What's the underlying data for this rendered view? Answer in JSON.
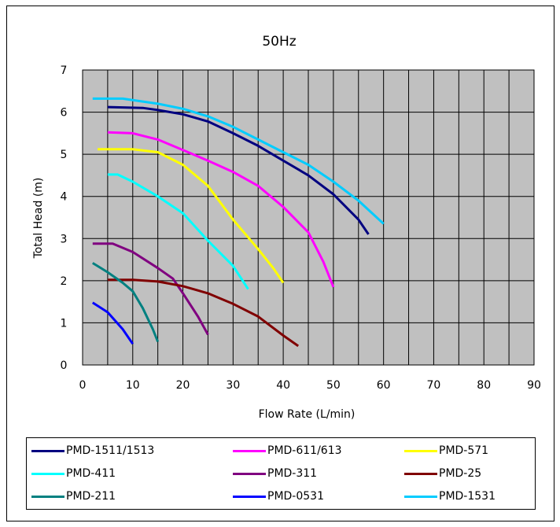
{
  "chart_data": {
    "type": "line",
    "title": "50Hz",
    "xlabel": "Flow Rate (L/min)",
    "ylabel": "Total Head (m)",
    "xlim": [
      0,
      90
    ],
    "ylim": [
      0,
      7
    ],
    "xticks": [
      0,
      10,
      20,
      30,
      40,
      50,
      60,
      70,
      80,
      90
    ],
    "yticks": [
      0,
      1,
      2,
      3,
      4,
      5,
      6,
      7
    ],
    "x_minor_step": 5,
    "grid": true,
    "plot_background": "#c0c0c0",
    "legend_position": "bottom",
    "series": [
      {
        "name": "PMD-1511/1513",
        "color": "#000080",
        "points": [
          [
            5,
            6.12
          ],
          [
            12,
            6.1
          ],
          [
            15,
            6.05
          ],
          [
            20,
            5.95
          ],
          [
            25,
            5.78
          ],
          [
            30,
            5.5
          ],
          [
            35,
            5.2
          ],
          [
            40,
            4.85
          ],
          [
            45,
            4.5
          ],
          [
            50,
            4.05
          ],
          [
            55,
            3.45
          ],
          [
            57,
            3.1
          ]
        ]
      },
      {
        "name": "PMD-611/613",
        "color": "#ff00ff",
        "points": [
          [
            5,
            5.52
          ],
          [
            10,
            5.5
          ],
          [
            15,
            5.35
          ],
          [
            20,
            5.1
          ],
          [
            25,
            4.85
          ],
          [
            30,
            4.58
          ],
          [
            35,
            4.25
          ],
          [
            40,
            3.75
          ],
          [
            45,
            3.15
          ],
          [
            48,
            2.45
          ],
          [
            50,
            1.85
          ]
        ]
      },
      {
        "name": "PMD-571",
        "color": "#ffff00",
        "points": [
          [
            3,
            5.12
          ],
          [
            10,
            5.12
          ],
          [
            15,
            5.05
          ],
          [
            20,
            4.75
          ],
          [
            25,
            4.25
          ],
          [
            30,
            3.45
          ],
          [
            35,
            2.75
          ],
          [
            38,
            2.3
          ],
          [
            40,
            1.95
          ]
        ]
      },
      {
        "name": "PMD-411",
        "color": "#00ffff",
        "points": [
          [
            5,
            4.52
          ],
          [
            7,
            4.52
          ],
          [
            10,
            4.35
          ],
          [
            15,
            4.0
          ],
          [
            20,
            3.6
          ],
          [
            25,
            2.95
          ],
          [
            30,
            2.35
          ],
          [
            33,
            1.8
          ]
        ]
      },
      {
        "name": "PMD-311",
        "color": "#800080",
        "points": [
          [
            2,
            2.88
          ],
          [
            6,
            2.88
          ],
          [
            10,
            2.68
          ],
          [
            15,
            2.3
          ],
          [
            18,
            2.05
          ],
          [
            20,
            1.7
          ],
          [
            23,
            1.15
          ],
          [
            25,
            0.72
          ]
        ]
      },
      {
        "name": "PMD-25",
        "color": "#800000",
        "points": [
          [
            5,
            2.02
          ],
          [
            10,
            2.02
          ],
          [
            15,
            1.98
          ],
          [
            20,
            1.87
          ],
          [
            25,
            1.7
          ],
          [
            30,
            1.45
          ],
          [
            35,
            1.15
          ],
          [
            40,
            0.7
          ],
          [
            43,
            0.45
          ]
        ]
      },
      {
        "name": "PMD-211",
        "color": "#008080",
        "points": [
          [
            2,
            2.42
          ],
          [
            5,
            2.2
          ],
          [
            8,
            1.95
          ],
          [
            10,
            1.75
          ],
          [
            12,
            1.35
          ],
          [
            14,
            0.85
          ],
          [
            15,
            0.55
          ]
        ]
      },
      {
        "name": "PMD-0531",
        "color": "#0000ff",
        "points": [
          [
            2,
            1.48
          ],
          [
            5,
            1.25
          ],
          [
            8,
            0.85
          ],
          [
            10,
            0.5
          ]
        ]
      },
      {
        "name": "PMD-1531",
        "color": "#00ccff",
        "points": [
          [
            2,
            6.32
          ],
          [
            8,
            6.32
          ],
          [
            15,
            6.2
          ],
          [
            20,
            6.08
          ],
          [
            25,
            5.9
          ],
          [
            30,
            5.65
          ],
          [
            35,
            5.35
          ],
          [
            40,
            5.05
          ],
          [
            45,
            4.75
          ],
          [
            50,
            4.35
          ],
          [
            55,
            3.9
          ],
          [
            60,
            3.35
          ]
        ]
      }
    ]
  }
}
